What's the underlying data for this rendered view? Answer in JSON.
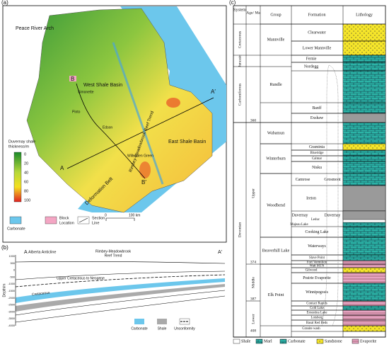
{
  "panel_a": {
    "label": "(a)",
    "map_labels": {
      "peace_river_arch": "Peace River Arch",
      "west_shale_basin": "West Shale Basin",
      "east_shale_basin": "East Shale Basin",
      "reef_trend": "Rimbey-Meadowbrook Reef Trend",
      "deformation_belt": "Deformation Belt",
      "a": "A",
      "a_prime": "A′",
      "b": "B",
      "b_prime": "B′",
      "simonette": "Simonette",
      "pinto": "Pinto",
      "edson": "Edson",
      "willesden_green": "Willesden Green"
    },
    "thickness_legend": {
      "title": [
        "Duvernay shale",
        "thickness/m"
      ],
      "values": [
        0,
        20,
        40,
        60,
        80,
        100
      ]
    },
    "legend": {
      "carbonate": "Carbonate",
      "block_location": [
        "Block",
        "Location"
      ],
      "section_line": [
        "Section",
        "Line"
      ],
      "scale_start": "0",
      "scale_end": "100 km"
    }
  },
  "panel_b": {
    "label": "(b)",
    "a": "A",
    "a_prime": "A′",
    "alberta_anticline": "Alberta Anticline",
    "reef_trend": [
      "Rimbey-Meadowbrook",
      "Reef Trend"
    ],
    "depth_label": "Depth/m",
    "depth_ticks": [
      1000,
      500,
      0,
      -500,
      -1000,
      -1500,
      -2000,
      -2500,
      -3000,
      -3500,
      -4000
    ],
    "units": [
      "Upper Cretaceous to Neogene",
      "Cretaceous"
    ],
    "legend": [
      "Carbonate",
      "Shale",
      "Unconformity"
    ]
  },
  "panel_c": {
    "label": "(c)",
    "headers": [
      "System",
      "Age/ Ma",
      "Group",
      "Formation",
      "Lithology"
    ],
    "systems": [
      "Cretaceous",
      "Jurassic",
      "Carboniferous",
      "Devonian"
    ],
    "series": [
      "Upper",
      "Middle",
      "Lower"
    ],
    "ages": [
      360,
      374,
      387,
      408
    ],
    "groups": [
      "Mannville",
      "Rundle",
      "Wabamun",
      "Winterburn",
      "Woodbend",
      "Beaverhill Lake",
      "Elk Point"
    ],
    "formations": [
      "Clearwater",
      "Lower Mannville",
      "Fernie",
      "Nordegg",
      "Banff",
      "Exshaw",
      "Graminia",
      "Blueridge",
      "Calmar",
      "Nisku",
      "Camrose",
      "Grosmont",
      "Ireton",
      "Duvernay",
      "Majeau Lake",
      "Leduc",
      "Duvernay",
      "Cooking Lake",
      "Waterways",
      "Slave Point",
      "Fort Vermilion",
      "Watt MTN",
      "Gilwood",
      "Prairie Evaporite",
      "Winnipegosis",
      "Contact Rapids",
      "Cold Lake",
      "Ernestina Lake",
      "Lotsberg",
      "Basal Red Beds",
      "Granite wash"
    ],
    "legend": [
      "Shale",
      "Marl",
      "Carbonate",
      "Sandstone",
      "Evaporite"
    ]
  }
}
